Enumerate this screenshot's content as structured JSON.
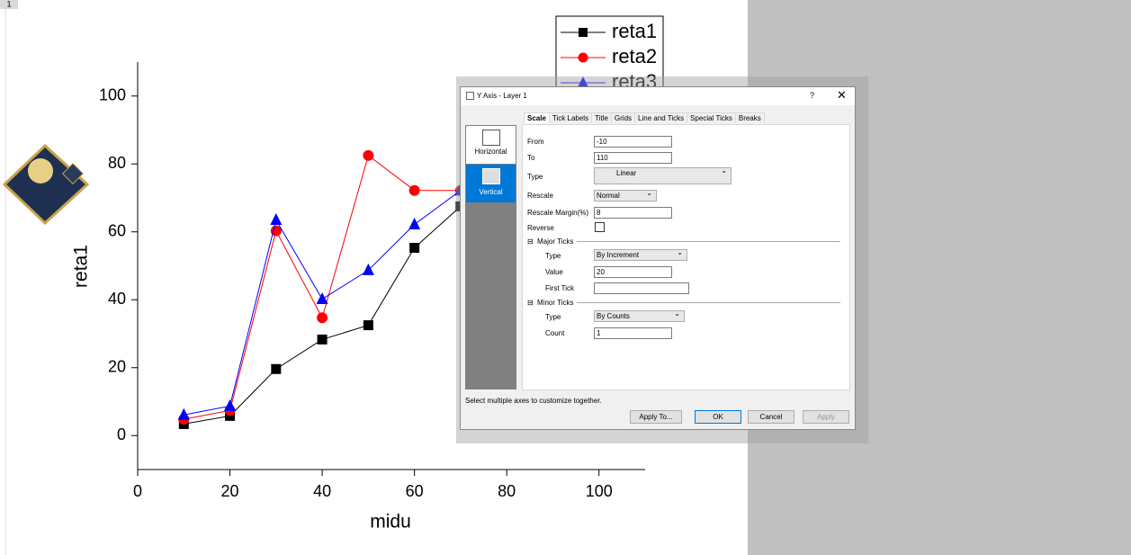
{
  "window_label": "1",
  "chart_data": {
    "type": "line",
    "xlabel": "midu",
    "ylabel": "reta1",
    "x": [
      10,
      20,
      30,
      40,
      50,
      60,
      70
    ],
    "series": [
      {
        "name": "reta1",
        "color": "#000000",
        "marker": "square",
        "values": [
          3.4,
          5.8,
          19.6,
          28.3,
          32.5,
          55.3,
          67.5
        ]
      },
      {
        "name": "reta2",
        "color": "#ff0000",
        "marker": "circle",
        "values": [
          4.8,
          7.4,
          60.3,
          34.7,
          82.5,
          72.2,
          72.2
        ]
      },
      {
        "name": "reta3",
        "color": "#0000ff",
        "marker": "triangle",
        "values": [
          6.1,
          8.7,
          63.5,
          40.2,
          48.7,
          62.2,
          72.2
        ]
      }
    ],
    "xlim": [
      0,
      110
    ],
    "xticks": [
      0,
      20,
      40,
      60,
      80,
      100
    ],
    "ylim": [
      -10,
      110
    ],
    "yticks": [
      0,
      20,
      40,
      60,
      80,
      100
    ]
  },
  "dialog": {
    "title": "Y Axis - Layer 1",
    "tabs": [
      "Scale",
      "Tick Labels",
      "Title",
      "Grids",
      "Line and Ticks",
      "Special Ticks",
      "Breaks"
    ],
    "axes": [
      "Horizontal",
      "Vertical"
    ],
    "fields": {
      "from": {
        "label": "From",
        "value": "-10"
      },
      "to": {
        "label": "To",
        "value": "110"
      },
      "type": {
        "label": "Type",
        "value": "Linear"
      },
      "rescale": {
        "label": "Rescale",
        "value": "Normal"
      },
      "margin": {
        "label": "Rescale Margin(%)",
        "value": "8"
      },
      "reverse": {
        "label": "Reverse"
      }
    },
    "major": {
      "title": "Major Ticks",
      "type": {
        "label": "Type",
        "value": "By Increment"
      },
      "value": {
        "label": "Value",
        "value": "20"
      },
      "first": {
        "label": "First Tick"
      }
    },
    "minor": {
      "title": "Minor Ticks",
      "type": {
        "label": "Type",
        "value": "By Counts"
      },
      "count": {
        "label": "Count",
        "value": "1"
      }
    },
    "note": "Select multiple axes to customize together.",
    "buttons": [
      "Apply To...",
      "OK",
      "Cancel",
      "Apply"
    ]
  }
}
